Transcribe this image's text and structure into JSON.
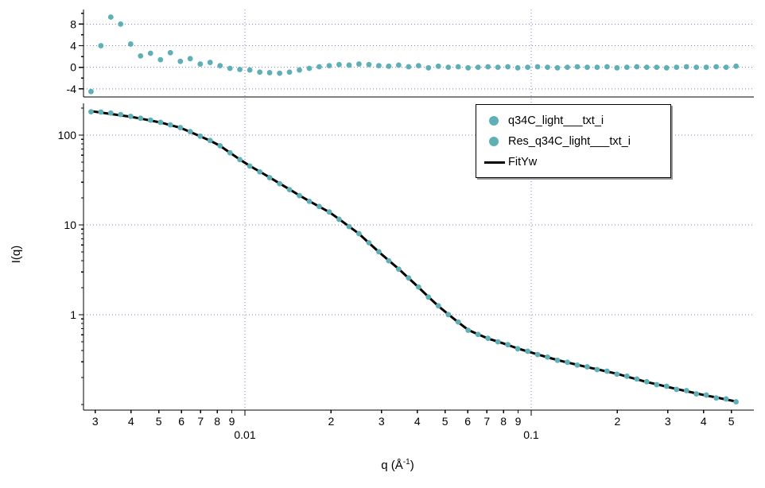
{
  "window": {
    "background": "#ffffff"
  },
  "colors": {
    "marker": "#5fb0b6",
    "fit_line": "#000000",
    "grid": "#7b7bd4",
    "axis": "#000000",
    "text": "#000000"
  },
  "legend": {
    "entries": [
      {
        "marker": "circle",
        "label": "q34C_light___txt_i"
      },
      {
        "marker": "circle",
        "label": "Res_q34C_light___txt_i"
      },
      {
        "marker": "line",
        "label": "FitYw"
      }
    ]
  },
  "axes": {
    "y_label": "I(q)",
    "x_label_prefix": "q (Å",
    "x_label_sup": "-1",
    "x_label_suffix": ")"
  },
  "chart_data": [
    {
      "type": "scatter",
      "panel": "residuals",
      "x_scale": "log",
      "y_scale": "linear",
      "xlim": [
        0.00273,
        0.5995
      ],
      "ylim": [
        -5.5,
        10.7
      ],
      "grid_y": [
        8,
        4,
        0,
        -4
      ],
      "yticks": [
        {
          "v": 8,
          "label": "8"
        },
        {
          "v": 4,
          "label": "4"
        },
        {
          "v": 0,
          "label": "0"
        },
        {
          "v": -4,
          "label": "-4"
        }
      ],
      "yticks_minor": [
        10,
        6,
        2,
        -2
      ],
      "series": [
        {
          "name": "Res_q34C_light___txt_i",
          "type": "scatter",
          "x": [
            0.0029,
            0.00314,
            0.0034,
            0.00368,
            0.00399,
            0.00432,
            0.00468,
            0.00507,
            0.00549,
            0.00595,
            0.00644,
            0.00698,
            0.00756,
            0.00819,
            0.00887,
            0.0096,
            0.0104,
            0.01127,
            0.0122,
            0.01322,
            0.01431,
            0.0155,
            0.01679,
            0.01818,
            0.0197,
            0.02133,
            0.02311,
            0.02503,
            0.02711,
            0.02936,
            0.0318,
            0.03444,
            0.03731,
            0.04041,
            0.04376,
            0.0474,
            0.05134,
            0.0556,
            0.06022,
            0.06523,
            0.07064,
            0.07651,
            0.08287,
            0.08975,
            0.09721,
            0.10528,
            0.11403,
            0.1235,
            0.13376,
            0.14488,
            0.15691,
            0.16995,
            0.18407,
            0.19936,
            0.21592,
            0.23386,
            0.25329,
            0.27434,
            0.29713,
            0.32182,
            0.34856,
            0.37751,
            0.40888,
            0.44285,
            0.47965,
            0.51951
          ],
          "y": [
            -4.5,
            4.0,
            9.3,
            8.0,
            4.3,
            2.1,
            2.6,
            1.4,
            2.7,
            1.1,
            1.6,
            0.6,
            0.9,
            0.3,
            -0.2,
            -0.4,
            -0.5,
            -0.9,
            -1.0,
            -1.1,
            -0.9,
            -0.5,
            -0.2,
            0.1,
            0.3,
            0.5,
            0.4,
            0.6,
            0.5,
            0.3,
            0.2,
            0.4,
            0.1,
            0.3,
            -0.1,
            0.2,
            0.0,
            0.1,
            -0.1,
            0.0,
            0.1,
            0.0,
            0.1,
            -0.1,
            0.0,
            0.1,
            0.0,
            -0.1,
            0.0,
            0.1,
            0.0,
            0.0,
            0.1,
            -0.1,
            0.0,
            0.1,
            0.0,
            0.0,
            -0.1,
            0.0,
            0.1,
            0.0,
            0.0,
            0.1,
            0.0,
            0.2
          ]
        }
      ]
    },
    {
      "type": "scatter+line",
      "panel": "main",
      "x_scale": "log",
      "y_scale": "log",
      "xlim": [
        0.00273,
        0.5995
      ],
      "ylim": [
        0.0867,
        226
      ],
      "grid_x": [
        0.01,
        0.1
      ],
      "grid_y": [
        1,
        10,
        100
      ],
      "xlabel": "q (Å-1)",
      "ylabel": "I(q)",
      "xticks": [
        {
          "v": 0.003,
          "label": "3"
        },
        {
          "v": 0.004,
          "label": "4"
        },
        {
          "v": 0.005,
          "label": "5"
        },
        {
          "v": 0.006,
          "label": "6"
        },
        {
          "v": 0.007,
          "label": "7"
        },
        {
          "v": 0.008,
          "label": "8"
        },
        {
          "v": 0.009,
          "label": "9"
        },
        {
          "v": 0.01,
          "label": "0.01",
          "major": true
        },
        {
          "v": 0.02,
          "label": "2"
        },
        {
          "v": 0.03,
          "label": "3"
        },
        {
          "v": 0.04,
          "label": "4"
        },
        {
          "v": 0.05,
          "label": "5"
        },
        {
          "v": 0.06,
          "label": "6"
        },
        {
          "v": 0.07,
          "label": "7"
        },
        {
          "v": 0.08,
          "label": "8"
        },
        {
          "v": 0.09,
          "label": "9"
        },
        {
          "v": 0.1,
          "label": "0.1",
          "major": true
        },
        {
          "v": 0.2,
          "label": "2"
        },
        {
          "v": 0.3,
          "label": "3"
        },
        {
          "v": 0.4,
          "label": "4"
        },
        {
          "v": 0.5,
          "label": "5"
        }
      ],
      "yticks": [
        {
          "v": 1,
          "label": "1"
        },
        {
          "v": 10,
          "label": "10"
        },
        {
          "v": 100,
          "label": "100"
        }
      ],
      "series": [
        {
          "name": "q34C_light___txt_i",
          "type": "scatter",
          "x": [
            0.0029,
            0.00314,
            0.0034,
            0.00368,
            0.00399,
            0.00432,
            0.00468,
            0.00507,
            0.00549,
            0.00595,
            0.00644,
            0.00698,
            0.00756,
            0.00819,
            0.00887,
            0.0096,
            0.0104,
            0.01127,
            0.0122,
            0.01322,
            0.01431,
            0.0155,
            0.01679,
            0.01818,
            0.0197,
            0.02133,
            0.02311,
            0.02503,
            0.02711,
            0.02936,
            0.0318,
            0.03444,
            0.03731,
            0.04041,
            0.04376,
            0.0474,
            0.05134,
            0.0556,
            0.06022,
            0.06523,
            0.07064,
            0.07651,
            0.08287,
            0.08975,
            0.09721,
            0.10528,
            0.11403,
            0.1235,
            0.13376,
            0.14488,
            0.15691,
            0.16995,
            0.18407,
            0.19936,
            0.21592,
            0.23386,
            0.25329,
            0.27434,
            0.29713,
            0.32182,
            0.34856,
            0.37751,
            0.40888,
            0.44285,
            0.47965,
            0.51951
          ],
          "y": [
            182.0,
            180.5,
            176.0,
            169.5,
            162.0,
            154.0,
            146.8,
            139.0,
            130.0,
            121.3,
            109.3,
            97.4,
            87.1,
            76.2,
            63.6,
            53.3,
            45.2,
            39.0,
            33.6,
            28.8,
            24.7,
            21.2,
            18.3,
            16.05,
            13.95,
            11.55,
            9.58,
            8.0,
            6.34,
            5.03,
            3.99,
            3.22,
            2.57,
            2.035,
            1.572,
            1.258,
            1.004,
            0.83,
            0.672,
            0.604,
            0.547,
            0.499,
            0.464,
            0.418,
            0.392,
            0.36,
            0.338,
            0.311,
            0.296,
            0.275,
            0.263,
            0.245,
            0.235,
            0.218,
            0.207,
            0.1925,
            0.1795,
            0.1665,
            0.1598,
            0.1475,
            0.1428,
            0.1315,
            0.1275,
            0.1185,
            0.1155,
            0.1072
          ]
        },
        {
          "name": "FitYw",
          "type": "line",
          "x": [
            0.0029,
            0.00314,
            0.0034,
            0.00368,
            0.00399,
            0.00432,
            0.00468,
            0.00507,
            0.00549,
            0.00595,
            0.00644,
            0.00698,
            0.00756,
            0.00819,
            0.00887,
            0.0096,
            0.0104,
            0.01127,
            0.0122,
            0.01322,
            0.01431,
            0.0155,
            0.01679,
            0.01818,
            0.0197,
            0.02133,
            0.02311,
            0.02503,
            0.02711,
            0.02936,
            0.0318,
            0.03444,
            0.03731,
            0.04041,
            0.04376,
            0.0474,
            0.05134,
            0.0556,
            0.06022,
            0.06523,
            0.07064,
            0.07651,
            0.08287,
            0.08975,
            0.09721,
            0.10528,
            0.11403,
            0.1235,
            0.13376,
            0.14488,
            0.15691,
            0.16995,
            0.18407,
            0.19936,
            0.21592,
            0.23386,
            0.25329,
            0.27434,
            0.29713,
            0.32182,
            0.34856,
            0.37751,
            0.40888,
            0.44285,
            0.47965,
            0.51951
          ],
          "y": [
            185.0,
            178.4,
            172.1,
            166.0,
            160.2,
            152.7,
            145.6,
            138.3,
            129.3,
            120.8,
            108.5,
            97.0,
            86.7,
            76.0,
            63.8,
            53.5,
            45.5,
            39.2,
            33.8,
            29.0,
            24.9,
            21.3,
            18.4,
            16.0,
            13.9,
            11.6,
            9.62,
            7.97,
            6.31,
            5.0,
            4.01,
            3.24,
            2.56,
            2.02,
            1.58,
            1.25,
            1.01,
            0.826,
            0.677,
            0.606,
            0.544,
            0.502,
            0.461,
            0.421,
            0.39,
            0.362,
            0.336,
            0.313,
            0.294,
            0.277,
            0.261,
            0.247,
            0.233,
            0.22,
            0.205,
            0.191,
            0.178,
            0.168,
            0.158,
            0.149,
            0.141,
            0.133,
            0.126,
            0.12,
            0.114,
            0.108
          ]
        }
      ]
    }
  ]
}
